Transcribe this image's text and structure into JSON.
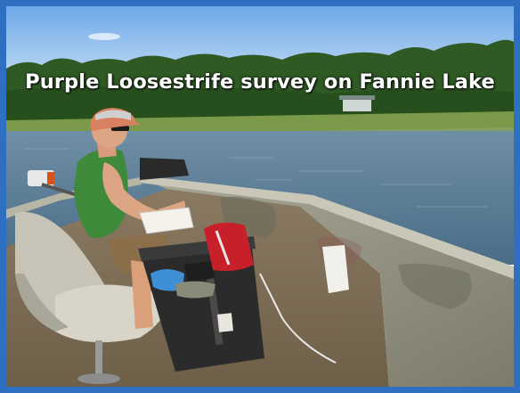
{
  "photo": {
    "caption": "Purple Loosestrife survey on Fannie Lake"
  },
  "colors": {
    "border": "#2f6fc2",
    "sky": "#8fc0ee",
    "water": "#5d7f9a",
    "trees": "#2f5a24",
    "boat_hull": "#9a9a88",
    "shirt": "#3e8a3a",
    "case": "#c8202a",
    "bin": "#2a2a2a"
  }
}
